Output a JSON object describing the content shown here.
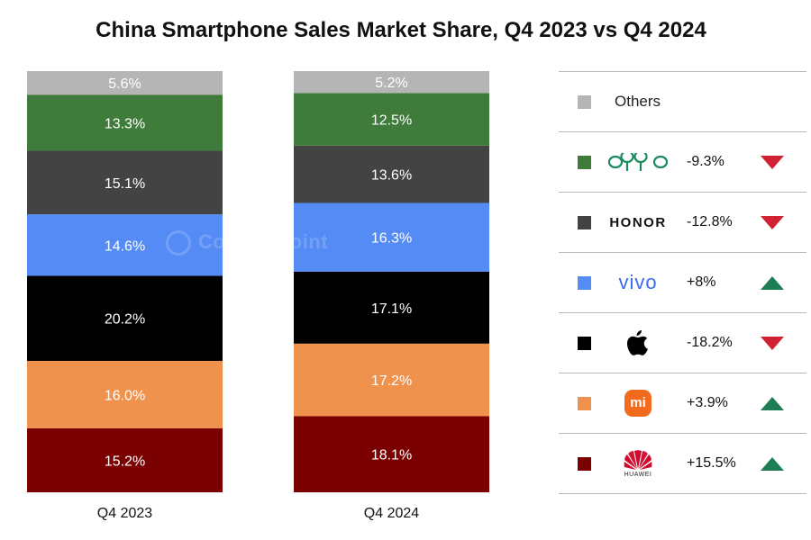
{
  "chart_data": {
    "type": "bar",
    "stacked": true,
    "normalized": true,
    "title": "China Smartphone Sales Market Share, Q4 2023 vs Q4 2024",
    "categories": [
      "Q4 2023",
      "Q4 2024"
    ],
    "xlabel": "",
    "ylabel": "",
    "ylim": [
      0,
      100
    ],
    "grid": false,
    "watermark": "Counterpoint",
    "series": [
      {
        "name": "Huawei",
        "color": "#7b0000",
        "values": [
          15.2,
          18.1
        ],
        "labels": [
          "15.2%",
          "18.1%"
        ]
      },
      {
        "name": "Xiaomi",
        "color": "#ef924e",
        "values": [
          16.0,
          17.2
        ],
        "labels": [
          "16.0%",
          "17.2%"
        ]
      },
      {
        "name": "Apple",
        "color": "#000000",
        "values": [
          20.2,
          17.1
        ],
        "labels": [
          "20.2%",
          "17.1%"
        ]
      },
      {
        "name": "vivo",
        "color": "#548bf4",
        "values": [
          14.6,
          16.3
        ],
        "labels": [
          "14.6%",
          "16.3%"
        ]
      },
      {
        "name": "HONOR",
        "color": "#434343",
        "values": [
          15.1,
          13.6
        ],
        "labels": [
          "15.1%",
          "13.6%"
        ]
      },
      {
        "name": "OPPO",
        "color": "#3f7b3b",
        "values": [
          13.3,
          12.5
        ],
        "labels": [
          "13.3%",
          "12.5%"
        ]
      },
      {
        "name": "Others",
        "color": "#b5b5b5",
        "values": [
          5.6,
          5.2
        ],
        "labels": [
          "5.6%",
          "5.2%"
        ]
      }
    ]
  },
  "legend": [
    {
      "brand": "Others",
      "text": "Others",
      "color": "#b5b5b5",
      "change": "",
      "direction": ""
    },
    {
      "brand": "OPPO",
      "text": "oppo",
      "color": "#3f7b3b",
      "change": "-9.3%",
      "direction": "down"
    },
    {
      "brand": "HONOR",
      "text": "HONOR",
      "color": "#434343",
      "change": "-12.8%",
      "direction": "down"
    },
    {
      "brand": "vivo",
      "text": "vivo",
      "color": "#548bf4",
      "change": "+8%",
      "direction": "up"
    },
    {
      "brand": "Apple",
      "text": "",
      "color": "#000000",
      "change": "-18.2%",
      "direction": "down"
    },
    {
      "brand": "Xiaomi",
      "text": "mi",
      "color": "#ef924e",
      "change": "+3.9%",
      "direction": "up"
    },
    {
      "brand": "Huawei",
      "text": "HUAWEI",
      "color": "#7b0000",
      "change": "+15.5%",
      "direction": "up"
    }
  ],
  "colors": {
    "up": "#1e7d52",
    "down": "#d02232",
    "oppo_logo": "#1d8a5e",
    "vivo_logo": "#3d6bf0",
    "mi_logo": "#f26b1d",
    "huawei_logo": "#cf0a2c"
  }
}
